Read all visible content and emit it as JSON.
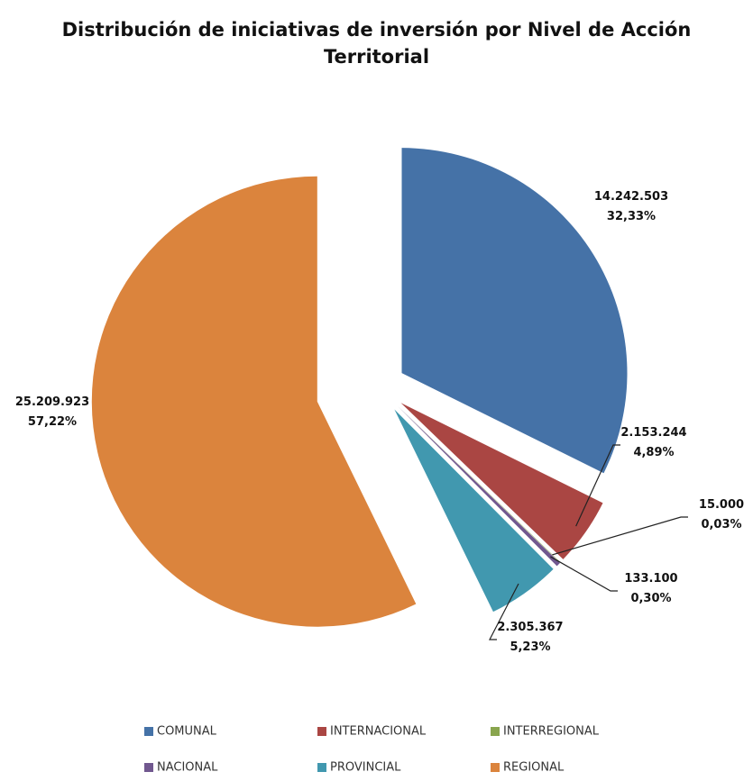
{
  "chart_data": {
    "type": "pie",
    "title": "Distribución de iniciativas de inversión por Nivel de Acción Territorial",
    "categories": [
      "COMUNAL",
      "INTERNACIONAL",
      "INTERREGIONAL",
      "NACIONAL",
      "PROVINCIAL",
      "REGIONAL"
    ],
    "values": [
      14242503,
      2153244,
      15000,
      133100,
      2305367,
      25209923
    ],
    "value_labels": [
      "14.242.503",
      "2.153.244",
      "15.000",
      "133.100",
      "2.305.367",
      "25.209.923"
    ],
    "percent_labels": [
      "32,33%",
      "4,89%",
      "0,03%",
      "0,30%",
      "5,23%",
      "57,22%"
    ],
    "colors": [
      "#4572a7",
      "#aa4643",
      "#89a54e",
      "#71588f",
      "#4198af",
      "#db843d"
    ],
    "legend": "bottom"
  }
}
